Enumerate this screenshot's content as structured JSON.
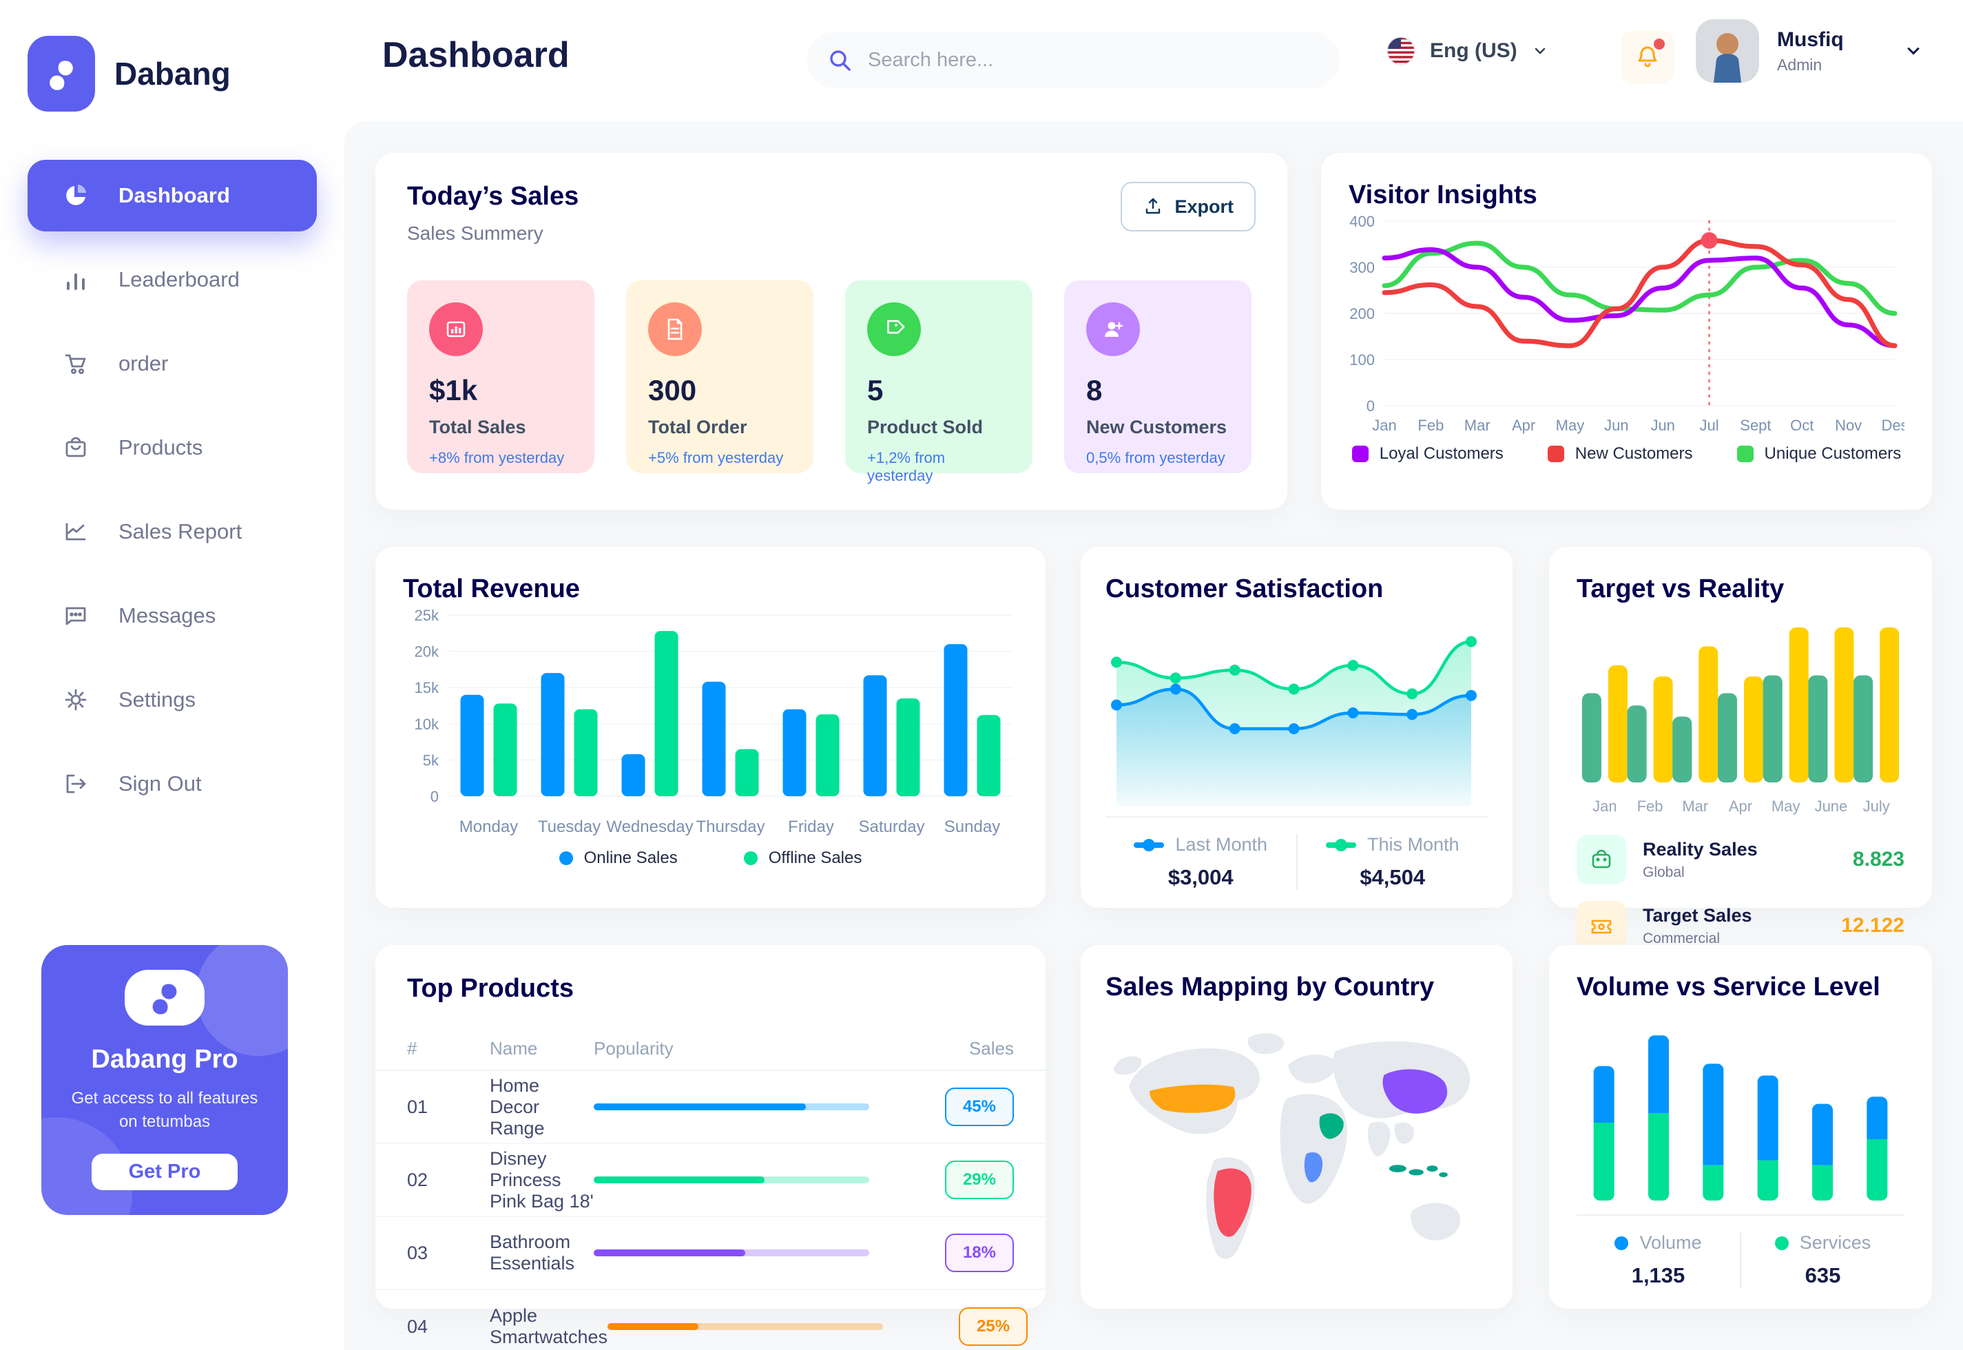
{
  "colors": {
    "primary": "#5D5FEF",
    "title_navy": "#151D48",
    "section_navy": "#05004E",
    "text_gray": "#737791",
    "axis_gray": "#7B91B0",
    "trend_blue": "#4079ED",
    "content_bg": "#F7F8FA"
  },
  "brand": {
    "name": "Dabang"
  },
  "header": {
    "title": "Dashboard",
    "search_placeholder": "Search here...",
    "language": "Eng (US)",
    "user": {
      "name": "Musfiq",
      "role": "Admin"
    }
  },
  "sidebar": {
    "items": [
      {
        "label": "Dashboard",
        "icon": "pie-chart-icon",
        "active": true
      },
      {
        "label": "Leaderboard",
        "icon": "bar-chart-icon",
        "active": false
      },
      {
        "label": "order",
        "icon": "cart-icon",
        "active": false
      },
      {
        "label": "Products",
        "icon": "bag-icon",
        "active": false
      },
      {
        "label": "Sales Report",
        "icon": "line-chart-icon",
        "active": false
      },
      {
        "label": "Messages",
        "icon": "chat-icon",
        "active": false
      },
      {
        "label": "Settings",
        "icon": "gear-icon",
        "active": false
      },
      {
        "label": "Sign Out",
        "icon": "sign-out-icon",
        "active": false
      }
    ],
    "promo": {
      "title": "Dabang Pro",
      "subtitle": "Get access to all features on tetumbas",
      "cta": "Get Pro"
    }
  },
  "today_sales": {
    "title": "Today’s Sales",
    "subtitle": "Sales Summery",
    "export_label": "Export",
    "cards": [
      {
        "value": "$1k",
        "label": "Total Sales",
        "trend": "+8% from yesterday",
        "bg": "#FFE2E5",
        "accent": "#FA5A7D",
        "icon": "mini-bar-chart-icon"
      },
      {
        "value": "300",
        "label": "Total Order",
        "trend": "+5% from yesterday",
        "bg": "#FFF4DE",
        "accent": "#FF947A",
        "icon": "receipt-icon"
      },
      {
        "value": "5",
        "label": "Product Sold",
        "trend": "+1,2% from yesterday",
        "bg": "#DCFCE7",
        "accent": "#3CD856",
        "icon": "tag-icon"
      },
      {
        "value": "8",
        "label": "New Customers",
        "trend": "0,5% from yesterday",
        "bg": "#F3E8FF",
        "accent": "#BF83FF",
        "icon": "user-plus-icon"
      }
    ]
  },
  "top_products": {
    "title": "Top Products",
    "columns": [
      "#",
      "Name",
      "Popularity",
      "Sales"
    ],
    "rows": [
      {
        "num": "01",
        "name": "Home Decor Range",
        "fill": "77%",
        "sales": "45%",
        "color": "#0095FF",
        "badge_bg": "#F0F9FF"
      },
      {
        "num": "02",
        "name": "Disney Princess Pink Bag 18'",
        "fill": "62%",
        "sales": "29%",
        "color": "#00E096",
        "badge_bg": "#F0FDF4"
      },
      {
        "num": "03",
        "name": "Bathroom Essentials",
        "fill": "55%",
        "sales": "18%",
        "color": "#884DFF",
        "badge_bg": "#FBF1FF"
      },
      {
        "num": "04",
        "name": "Apple Smartwatches",
        "fill": "33%",
        "sales": "25%",
        "color": "#FF8900",
        "badge_bg": "#FEF6E6"
      }
    ]
  },
  "map": {
    "title": "Sales Mapping by Country",
    "land_color": "#E6E9ED",
    "regions": {
      "united_states": "#FFA412",
      "brazil": "#F64E60",
      "dr_congo": "#5B8FF9",
      "saudi_arabia": "#00B085",
      "china": "#8950FC",
      "indonesia": "#00A389"
    }
  },
  "chart_data": [
    {
      "id": "visitor_insights",
      "type": "line",
      "title": "Visitor Insights",
      "x": [
        "Jan",
        "Feb",
        "Mar",
        "Apr",
        "May",
        "Jun",
        "Jun",
        "Jul",
        "Sept",
        "Oct",
        "Nov",
        "Des"
      ],
      "ylim": [
        0,
        400
      ],
      "yticks": [
        0,
        100,
        200,
        300,
        400
      ],
      "grid": true,
      "legend_position": "bottom",
      "series": [
        {
          "name": "Loyal Customers",
          "color": "#A700FB",
          "values": [
            320,
            338,
            300,
            235,
            185,
            195,
            255,
            315,
            320,
            255,
            175,
            130
          ]
        },
        {
          "name": "New Customers",
          "color": "#EF3E3E",
          "values": [
            245,
            262,
            215,
            140,
            130,
            210,
            300,
            358,
            345,
            305,
            230,
            130
          ]
        },
        {
          "name": "Unique Customers",
          "color": "#3CD856",
          "values": [
            260,
            330,
            352,
            300,
            240,
            210,
            207,
            240,
            300,
            315,
            265,
            200
          ]
        }
      ],
      "marker": {
        "series_index": 1,
        "point_index": 7,
        "color": "#F64E60"
      }
    },
    {
      "id": "total_revenue",
      "type": "bar",
      "title": "Total Revenue",
      "categories": [
        "Monday",
        "Tuesday",
        "Wednesday",
        "Thursday",
        "Friday",
        "Saturday",
        "Sunday"
      ],
      "ylim": [
        0,
        25000
      ],
      "yticks": [
        0,
        5000,
        10000,
        15000,
        20000,
        25000
      ],
      "ytick_labels": [
        "0",
        "5k",
        "10k",
        "15k",
        "20k",
        "25k"
      ],
      "grid": true,
      "legend_position": "bottom",
      "series": [
        {
          "name": "Online Sales",
          "color": "#0095FF",
          "values": [
            14000,
            17000,
            5800,
            15800,
            12000,
            16700,
            21000
          ]
        },
        {
          "name": "Offline Sales",
          "color": "#00E096",
          "values": [
            12800,
            12000,
            22800,
            6500,
            11300,
            13500,
            11200
          ]
        }
      ]
    },
    {
      "id": "customer_satisfaction",
      "type": "area",
      "title": "Customer Satisfaction",
      "ylim": [
        0,
        100
      ],
      "grid": false,
      "legend_position": "bottom",
      "series": [
        {
          "name": "Last Month",
          "color": "#0095FF",
          "total": "$3,004",
          "values": [
            45,
            55,
            30,
            30,
            40,
            39,
            51
          ]
        },
        {
          "name": "This Month",
          "color": "#00E096",
          "total": "$4,504",
          "values": [
            72,
            62,
            67,
            55,
            70,
            52,
            85
          ]
        }
      ]
    },
    {
      "id": "target_vs_reality",
      "type": "bar",
      "title": "Target vs Reality",
      "categories": [
        "Jan",
        "Feb",
        "Mar",
        "Apr",
        "May",
        "June",
        "July"
      ],
      "ylim": [
        0,
        15
      ],
      "grid": false,
      "series": [
        {
          "name": "Reality Sales",
          "color": "#4AB58E",
          "values": [
            8.0,
            6.9,
            5.9,
            8.0,
            9.6,
            9.6,
            9.6
          ]
        },
        {
          "name": "Target Sales",
          "color": "#FFCF00",
          "values": [
            10.5,
            9.5,
            12.2,
            9.5,
            13.9,
            13.9,
            13.9
          ]
        }
      ],
      "legend": [
        {
          "title": "Reality Sales",
          "subtitle": "Global",
          "value": "8.823",
          "value_color": "#27AE60",
          "tile_bg": "#E2FFF3",
          "icon": "bag-icon"
        },
        {
          "title": "Target Sales",
          "subtitle": "Commercial",
          "value": "12.122",
          "value_color": "#FFA412",
          "tile_bg": "#FFF4DE",
          "icon": "ticket-icon"
        }
      ]
    },
    {
      "id": "volume_vs_service",
      "type": "stacked-bar",
      "title": "Volume vs Service Level",
      "ylim": [
        0,
        800
      ],
      "grid": false,
      "legend_position": "bottom",
      "series": [
        {
          "name": "Volume",
          "color": "#0095FF",
          "total": "1,135",
          "values": [
            240,
            330,
            430,
            360,
            260,
            180
          ]
        },
        {
          "name": "Services",
          "color": "#00E096",
          "total": "635",
          "values": [
            330,
            370,
            150,
            170,
            150,
            260
          ]
        }
      ]
    }
  ]
}
